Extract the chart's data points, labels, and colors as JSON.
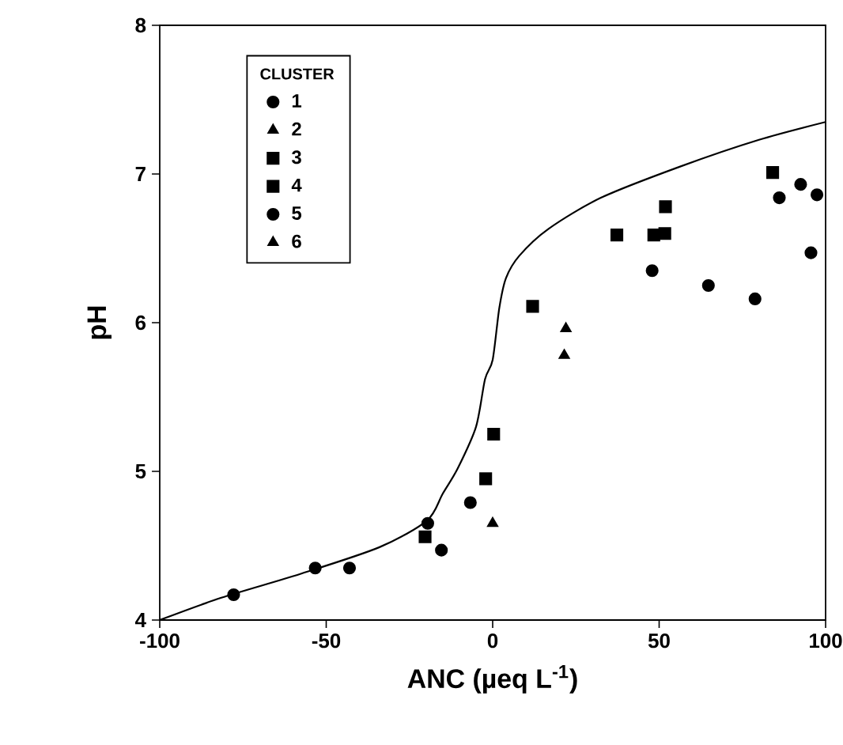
{
  "chart_data": {
    "type": "scatter",
    "xlabel": "ANC   (µeq L$^{-1}$)",
    "ylabel": "pH",
    "legend_title": "CLUSTER",
    "xlim": [
      -100,
      100
    ],
    "ylim": [
      4,
      8
    ],
    "xticks": [
      -100,
      -50,
      0,
      50,
      100
    ],
    "yticks": [
      4,
      5,
      6,
      7,
      8
    ],
    "grid": false,
    "legend": "top left",
    "series": [
      {
        "name": "1",
        "color": "#000000",
        "marker": "circle",
        "x": [
          47.9,
          64.8,
          78.8,
          86.1,
          92.5,
          97.4,
          95.6
        ],
        "values": [
          6.35,
          6.25,
          6.16,
          6.84,
          6.93,
          6.86,
          6.47
        ]
      },
      {
        "name": "2",
        "color": "#000000",
        "marker": "triangle",
        "x": [
          0
        ],
        "values": [
          4.65
        ]
      },
      {
        "name": "3",
        "color": "#000000",
        "marker": "square",
        "x": [
          37.3,
          48.4,
          51.7,
          51.9,
          84.1
        ],
        "values": [
          6.59,
          6.59,
          6.6,
          6.78,
          7.01
        ]
      },
      {
        "name": "4",
        "color": "#000000",
        "marker": "square",
        "x": [
          12.0,
          0.3,
          -2.1,
          -20.3
        ],
        "values": [
          6.11,
          5.25,
          4.95,
          4.56
        ]
      },
      {
        "name": "5",
        "color": "#000000",
        "marker": "circle",
        "x": [
          -77.8,
          -53.3,
          -43,
          -19.5,
          -15.4,
          -6.7
        ],
        "values": [
          4.17,
          4.35,
          4.35,
          4.65,
          4.47,
          4.79
        ]
      },
      {
        "name": "6",
        "color": "#000000",
        "marker": "triangle",
        "x": [
          22,
          21.5
        ],
        "values": [
          5.96,
          5.78
        ]
      },
      {
        "type": "line",
        "color": "#000000",
        "marker": "none",
        "line_style": "solid",
        "x": [
          -100,
          -81.5,
          -57.8,
          -34,
          -19.7,
          -15,
          -10.5,
          -5,
          -2.3,
          0,
          2,
          4,
          8,
          16.7,
          32.5,
          56.3,
          80,
          100
        ],
        "values": [
          4.0,
          4.15,
          4.31,
          4.49,
          4.67,
          4.85,
          5.02,
          5.3,
          5.62,
          5.75,
          6.1,
          6.3,
          6.45,
          6.63,
          6.84,
          7.05,
          7.23,
          7.35
        ]
      }
    ]
  }
}
